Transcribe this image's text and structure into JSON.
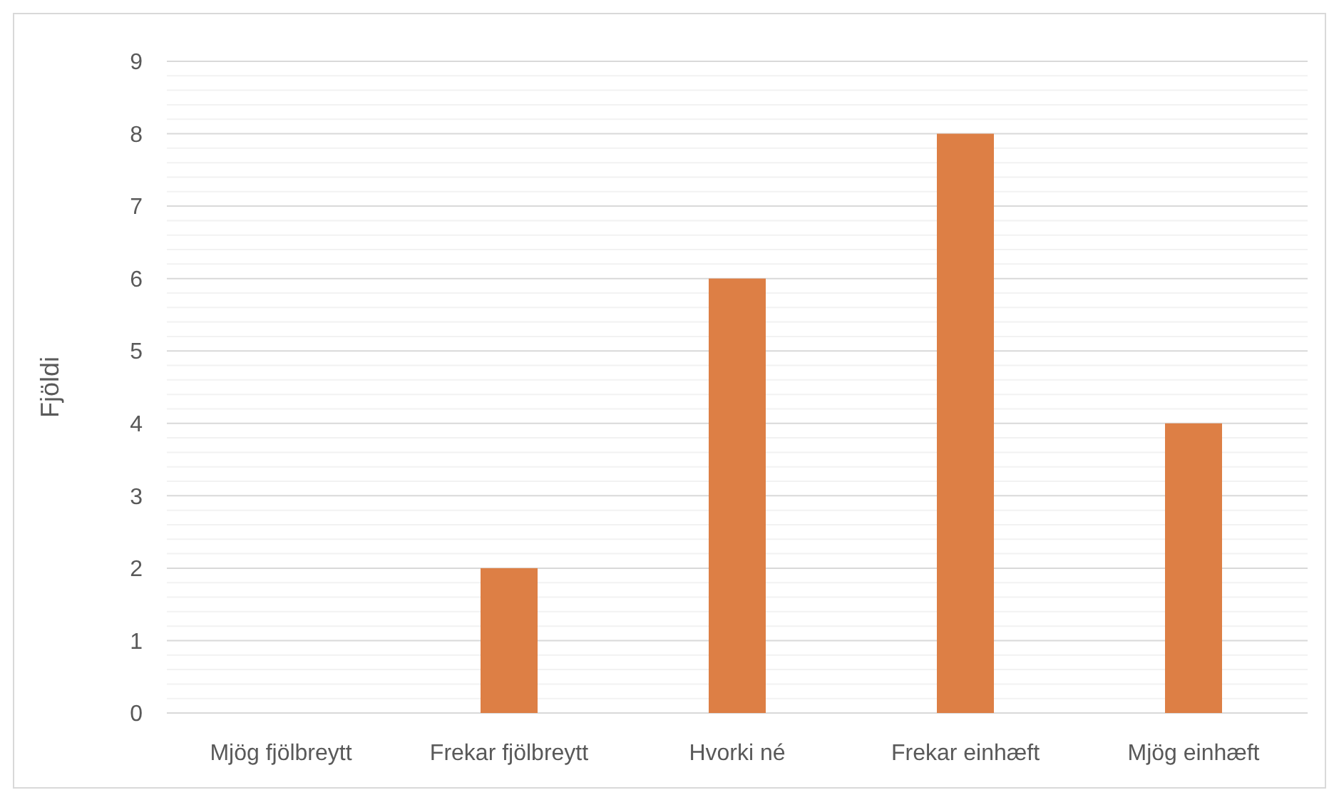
{
  "chart_data": {
    "type": "bar",
    "ylabel": "Fjöldi",
    "categories": [
      "Mjög fjölbreytt",
      "Frekar fjölbreytt",
      "Hvorki né",
      "Frekar einhæft",
      "Mjög einhæft"
    ],
    "values": [
      0,
      2,
      6,
      8,
      4
    ],
    "color": "#dd7f45",
    "ylim": [
      0,
      9
    ],
    "yticks": [
      0,
      {
        "value": 0.2,
        "label": null
      },
      {
        "value": 0.4,
        "label": null
      },
      {
        "value": 0.6,
        "label": null
      },
      {
        "value": 0.8,
        "label": null
      },
      1,
      {
        "value": 1.2,
        "label": null
      },
      {
        "value": 1.4,
        "label": null
      },
      {
        "value": 1.6,
        "label": null
      },
      {
        "value": 1.8,
        "label": null
      },
      2,
      {
        "value": 2.2,
        "label": null
      },
      {
        "value": 2.4,
        "label": null
      },
      {
        "value": 2.6,
        "label": null
      },
      {
        "value": 2.8,
        "label": null
      },
      3,
      {
        "value": 3.2,
        "label": null
      },
      {
        "value": 3.4,
        "label": null
      },
      {
        "value": 3.6,
        "label": null
      },
      {
        "value": 3.8,
        "label": null
      },
      4,
      {
        "value": 4.2,
        "label": null
      },
      {
        "value": 4.4,
        "label": null
      },
      {
        "value": 4.6,
        "label": null
      },
      {
        "value": 4.8,
        "label": null
      },
      5,
      {
        "value": 5.2,
        "label": null
      },
      {
        "value": 5.4,
        "label": null
      },
      {
        "value": 5.6,
        "label": null
      },
      {
        "value": 5.8,
        "label": null
      },
      6,
      {
        "value": 6.2,
        "label": null
      },
      {
        "value": 6.4,
        "label": null
      },
      {
        "value": 6.6,
        "label": null
      },
      {
        "value": 6.8,
        "label": null
      },
      7,
      {
        "value": 7.2,
        "label": null
      },
      {
        "value": 7.4,
        "label": null
      },
      {
        "value": 7.6,
        "label": null
      },
      {
        "value": 7.8,
        "label": null
      },
      8,
      {
        "value": 8.2,
        "label": null
      },
      {
        "value": 8.4,
        "label": null
      },
      {
        "value": 8.6,
        "label": null
      },
      {
        "value": 8.8,
        "label": null
      },
      9
    ],
    "grid": true
  }
}
